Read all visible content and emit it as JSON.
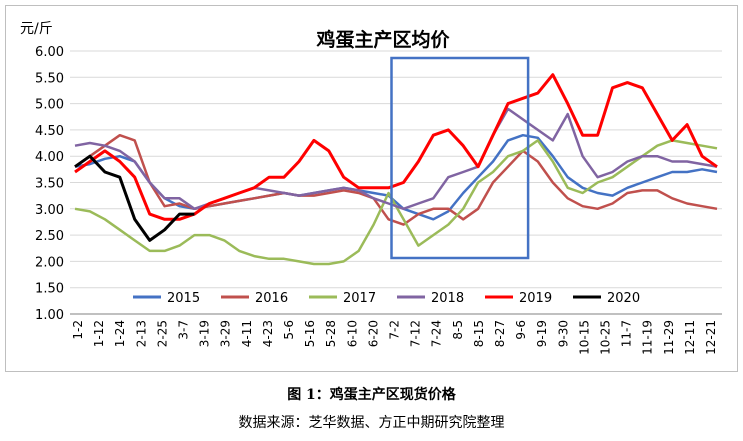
{
  "figure": {
    "caption": "图 1：鸡蛋主产区现货价格",
    "source": "数据来源：芝华数据、方正中期研究院整理"
  },
  "chart_data": {
    "type": "line",
    "title": "鸡蛋主产区均价",
    "unit_label": "元/斤",
    "ylim": [
      1.0,
      6.0
    ],
    "y_ticks": [
      "1.00",
      "1.50",
      "2.00",
      "2.50",
      "3.00",
      "3.50",
      "4.00",
      "4.50",
      "5.00",
      "5.50",
      "6.00"
    ],
    "x_ticks": [
      "1-2",
      "1-12",
      "1-24",
      "2-13",
      "2-25",
      "3-7",
      "3-19",
      "3-29",
      "4-11",
      "4-23",
      "5-6",
      "5-16",
      "5-28",
      "6-10",
      "6-20",
      "7-2",
      "7-12",
      "7-24",
      "8-5",
      "8-15",
      "8-27",
      "9-6",
      "9-19",
      "9-30",
      "10-15",
      "10-25",
      "11-7",
      "11-19",
      "11-29",
      "12-11",
      "12-21"
    ],
    "grid": true,
    "legend_position": "bottom",
    "highlight_box": {
      "x_from": "7-2",
      "x_to": "9-6",
      "color": "#4472c4"
    },
    "series": [
      {
        "name": "2015",
        "color": "#4472c4",
        "values": [
          3.8,
          3.85,
          3.95,
          4.0,
          3.9,
          3.5,
          3.2,
          3.05,
          3.0,
          3.05,
          3.1,
          3.15,
          3.2,
          3.25,
          3.3,
          3.25,
          3.3,
          3.35,
          3.4,
          3.35,
          3.3,
          3.25,
          3.0,
          2.9,
          2.8,
          2.95,
          3.3,
          3.6,
          3.9,
          4.3,
          4.4,
          4.35,
          4.0,
          3.6,
          3.4,
          3.3,
          3.25,
          3.4,
          3.5,
          3.6,
          3.7,
          3.7,
          3.75,
          3.7
        ]
      },
      {
        "name": "2016",
        "color": "#c0504d",
        "values": [
          3.8,
          4.0,
          4.2,
          4.4,
          4.3,
          3.5,
          3.05,
          3.1,
          3.0,
          3.05,
          3.1,
          3.15,
          3.2,
          3.25,
          3.3,
          3.25,
          3.25,
          3.3,
          3.35,
          3.3,
          3.2,
          2.8,
          2.7,
          2.9,
          3.0,
          3.0,
          2.8,
          3.0,
          3.5,
          3.8,
          4.1,
          3.9,
          3.5,
          3.2,
          3.05,
          3.0,
          3.1,
          3.3,
          3.35,
          3.35,
          3.2,
          3.1,
          3.05,
          3.0
        ]
      },
      {
        "name": "2017",
        "color": "#9bbb59",
        "values": [
          3.0,
          2.95,
          2.8,
          2.6,
          2.4,
          2.2,
          2.2,
          2.3,
          2.5,
          2.5,
          2.4,
          2.2,
          2.1,
          2.05,
          2.05,
          2.0,
          1.95,
          1.95,
          2.0,
          2.2,
          2.7,
          3.3,
          2.8,
          2.3,
          2.5,
          2.7,
          3.0,
          3.5,
          3.7,
          4.0,
          4.1,
          4.3,
          3.9,
          3.4,
          3.3,
          3.5,
          3.6,
          3.8,
          4.0,
          4.2,
          4.3,
          4.25,
          4.2,
          4.15
        ]
      },
      {
        "name": "2018",
        "color": "#8064a2",
        "values": [
          4.2,
          4.25,
          4.2,
          4.1,
          3.9,
          3.5,
          3.2,
          3.2,
          3.0,
          3.1,
          3.2,
          3.3,
          3.4,
          3.35,
          3.3,
          3.25,
          3.3,
          3.35,
          3.4,
          3.35,
          3.2,
          3.1,
          3.0,
          3.1,
          3.2,
          3.6,
          3.7,
          3.8,
          4.4,
          4.9,
          4.7,
          4.5,
          4.3,
          4.8,
          4.0,
          3.6,
          3.7,
          3.9,
          4.0,
          4.0,
          3.9,
          3.9,
          3.85,
          3.8
        ]
      },
      {
        "name": "2019",
        "color": "#ff0000",
        "values": [
          3.7,
          3.9,
          4.1,
          3.9,
          3.6,
          2.9,
          2.8,
          2.8,
          2.9,
          3.1,
          3.2,
          3.3,
          3.4,
          3.6,
          3.6,
          3.9,
          4.3,
          4.1,
          3.6,
          3.4,
          3.4,
          3.4,
          3.5,
          3.9,
          4.4,
          4.5,
          4.2,
          3.8,
          4.4,
          5.0,
          5.1,
          5.2,
          5.55,
          5.0,
          4.4,
          4.4,
          5.3,
          5.4,
          5.3,
          4.8,
          4.3,
          4.6,
          4.0,
          3.8
        ]
      },
      {
        "name": "2020",
        "color": "#000000",
        "values": [
          3.8,
          4.0,
          3.7,
          3.6,
          2.8,
          2.4,
          2.6,
          2.9,
          2.9,
          null,
          null,
          null,
          null,
          null,
          null,
          null,
          null,
          null,
          null,
          null,
          null,
          null,
          null,
          null,
          null,
          null,
          null,
          null,
          null,
          null,
          null,
          null,
          null,
          null,
          null,
          null,
          null,
          null,
          null,
          null,
          null,
          null,
          null,
          null
        ]
      }
    ]
  }
}
